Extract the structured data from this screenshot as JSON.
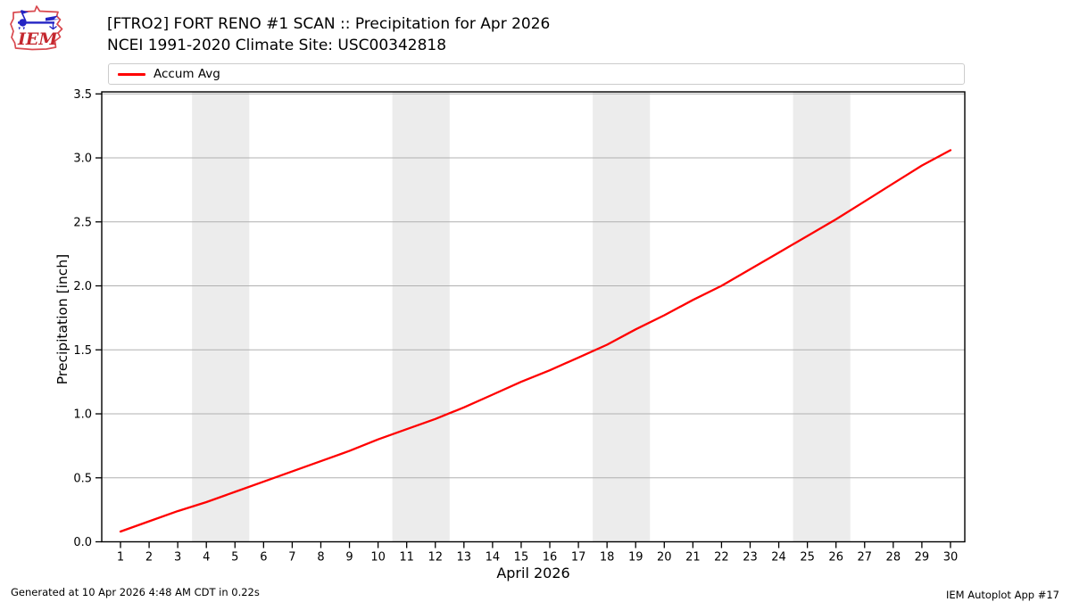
{
  "header": {
    "logo_text": "IEM",
    "title_line1": "[FTRO2] FORT RENO #1 SCAN :: Precipitation for Apr 2026",
    "title_line2": "NCEI 1991-2020 Climate Site: USC00342818"
  },
  "legend": {
    "items": [
      {
        "label": "Accum Avg",
        "color": "#ff0000"
      }
    ]
  },
  "footer": {
    "left": "Generated at 10 Apr 2026 4:48 AM CDT in 0.22s",
    "right": "IEM Autoplot App #17"
  },
  "colors": {
    "accent_red": "#ff0000",
    "grid": "#b0b0b0",
    "weekend_band": "#ececec",
    "axis": "#000000",
    "logo_red": "#d0333b",
    "logo_blue": "#2424c4"
  },
  "chart_data": {
    "type": "line",
    "title": "[FTRO2] FORT RENO #1 SCAN :: Precipitation for Apr 2026",
    "subtitle": "NCEI 1991-2020 Climate Site: USC00342818",
    "xlabel": "April 2026",
    "ylabel": "Precipitation [inch]",
    "x": [
      1,
      2,
      3,
      4,
      5,
      6,
      7,
      8,
      9,
      10,
      11,
      12,
      13,
      14,
      15,
      16,
      17,
      18,
      19,
      20,
      21,
      22,
      23,
      24,
      25,
      26,
      27,
      28,
      29,
      30
    ],
    "series": [
      {
        "name": "Accum Avg",
        "color": "#ff0000",
        "values": [
          0.08,
          0.16,
          0.24,
          0.31,
          0.39,
          0.47,
          0.55,
          0.63,
          0.71,
          0.8,
          0.88,
          0.96,
          1.05,
          1.15,
          1.25,
          1.34,
          1.44,
          1.54,
          1.66,
          1.77,
          1.89,
          2.0,
          2.13,
          2.26,
          2.39,
          2.52,
          2.66,
          2.8,
          2.94,
          3.06
        ]
      }
    ],
    "x_ticks": [
      1,
      2,
      3,
      4,
      5,
      6,
      7,
      8,
      9,
      10,
      11,
      12,
      13,
      14,
      15,
      16,
      17,
      18,
      19,
      20,
      21,
      22,
      23,
      24,
      25,
      26,
      27,
      28,
      29,
      30
    ],
    "y_ticks": [
      0.0,
      0.5,
      1.0,
      1.5,
      2.0,
      2.5,
      3.0,
      3.5
    ],
    "xlim": [
      0.345,
      30.5
    ],
    "ylim": [
      0,
      3.516
    ],
    "grid": "horizontal",
    "legend_position": "top",
    "shaded_bands_x": [
      [
        3.5,
        5.5
      ],
      [
        10.5,
        12.5
      ],
      [
        17.5,
        19.5
      ],
      [
        24.5,
        26.5
      ]
    ]
  }
}
